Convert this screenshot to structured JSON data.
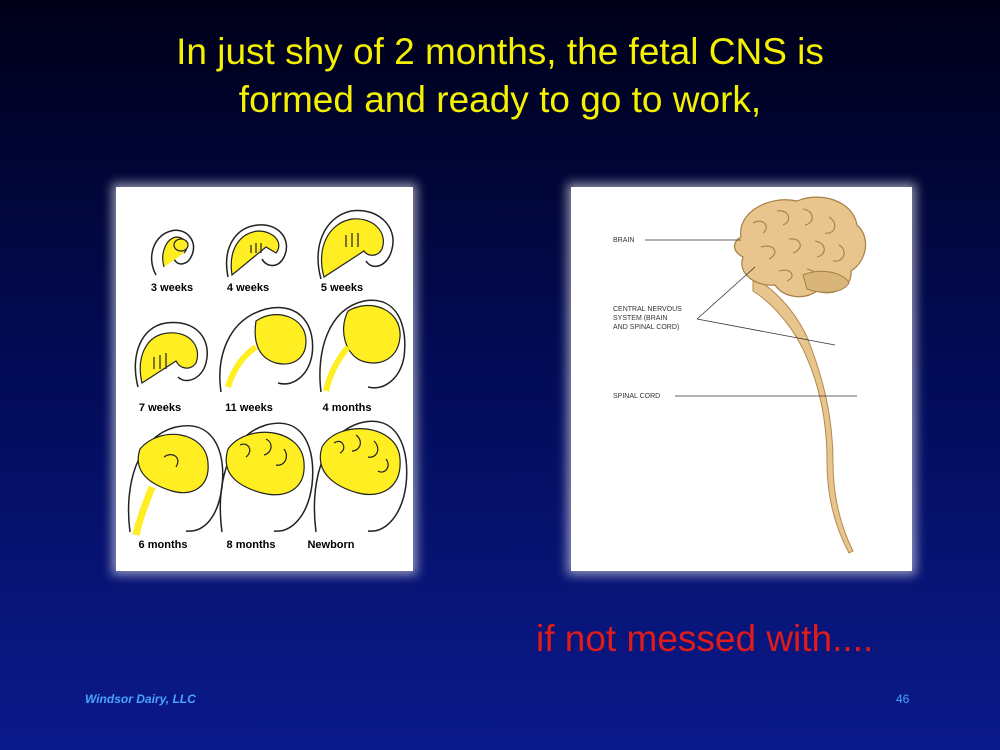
{
  "slide": {
    "title_line1": "In just shy of 2 months, the fetal CNS is",
    "title_line2": "formed and ready to go to work,",
    "warning": "if not messed with....",
    "footer_left": "Windsor Dairy, LLC",
    "page_number": "46"
  },
  "development_figure": {
    "captions": [
      "3 weeks",
      "4 weeks",
      "5 weeks",
      "7 weeks",
      "11 weeks",
      "4 months",
      "6 months",
      "8 months",
      "Newborn"
    ],
    "brain_color": "#ffee22"
  },
  "cns_figure": {
    "labels": {
      "brain": "BRAIN",
      "cns_line1": "CENTRAL NERVOUS",
      "cns_line2": "SYSTEM (BRAIN",
      "cns_line3": "AND SPINAL CORD)",
      "spinal_cord": "SPINAL CORD"
    },
    "tissue_color": "#e7c58d"
  }
}
